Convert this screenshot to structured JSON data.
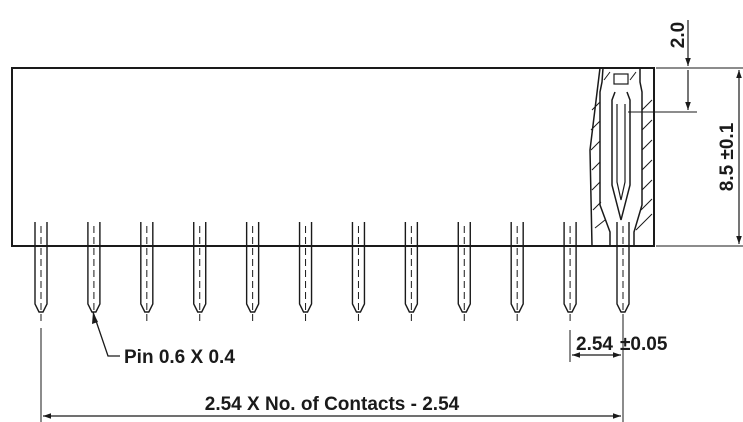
{
  "drawing": {
    "pin_count": 12,
    "dim_top_offset": "2.0",
    "dim_height": "8.5 ±0.1",
    "dim_pitch": "2.54",
    "dim_pitch_tol": "±0.05",
    "pin_label": "Pin 0.6 X 0.4",
    "dim_total_length": "2.54 X No. of Contacts - 2.54"
  }
}
